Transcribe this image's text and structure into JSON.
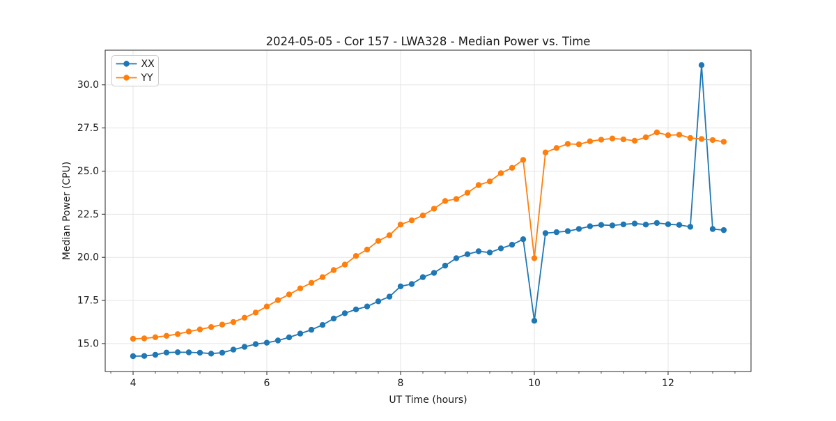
{
  "chart_data": {
    "type": "line",
    "title": "2024-05-05 - Cor 157 - LWA328 - Median Power vs. Time",
    "xlabel": "UT Time (hours)",
    "ylabel": "Median Power (CPU)",
    "xlim": [
      3.583,
      13.24
    ],
    "ylim": [
      13.38,
      32.01
    ],
    "xticks": [
      4,
      6,
      8,
      10,
      12
    ],
    "xtick_labels": [
      "4",
      "6",
      "8",
      "10",
      "12"
    ],
    "x_minor_tick_spacing": 0.333,
    "yticks": [
      15.0,
      17.5,
      20.0,
      22.5,
      25.0,
      27.5,
      30.0
    ],
    "ytick_labels": [
      "15.0",
      "17.5",
      "20.0",
      "22.5",
      "25.0",
      "27.5",
      "30.0"
    ],
    "grid": true,
    "legend_position": "upper left",
    "background_color": "#ffffff",
    "grid_color": "#e5e5e5",
    "x": [
      4.0,
      4.167,
      4.333,
      4.5,
      4.667,
      4.833,
      5.0,
      5.167,
      5.333,
      5.5,
      5.667,
      5.833,
      6.0,
      6.167,
      6.333,
      6.5,
      6.667,
      6.833,
      7.0,
      7.167,
      7.333,
      7.5,
      7.667,
      7.833,
      8.0,
      8.167,
      8.333,
      8.5,
      8.667,
      8.833,
      9.0,
      9.167,
      9.333,
      9.5,
      9.667,
      9.833,
      10.0,
      10.167,
      10.333,
      10.5,
      10.667,
      10.833,
      11.0,
      11.167,
      11.333,
      11.5,
      11.667,
      11.833,
      12.0,
      12.167,
      12.333,
      12.5,
      12.667,
      12.833
    ],
    "series": [
      {
        "name": "XX",
        "color": "#1f77b4",
        "values": [
          14.27,
          14.28,
          14.35,
          14.48,
          14.5,
          14.49,
          14.47,
          14.42,
          14.47,
          14.65,
          14.81,
          14.97,
          15.05,
          15.18,
          15.36,
          15.58,
          15.8,
          16.08,
          16.45,
          16.76,
          16.98,
          17.15,
          17.45,
          17.72,
          18.32,
          18.45,
          18.85,
          19.1,
          19.52,
          19.95,
          20.18,
          20.35,
          20.28,
          20.52,
          20.73,
          21.05,
          16.32,
          21.4,
          21.46,
          21.52,
          21.65,
          21.8,
          21.88,
          21.85,
          21.91,
          21.96,
          21.9,
          21.99,
          21.92,
          21.88,
          21.77,
          31.15,
          21.64,
          21.58
        ]
      },
      {
        "name": "YY",
        "color": "#ff7f0e",
        "values": [
          15.28,
          15.3,
          15.37,
          15.45,
          15.55,
          15.7,
          15.82,
          15.96,
          16.1,
          16.25,
          16.5,
          16.8,
          17.15,
          17.52,
          17.85,
          18.2,
          18.52,
          18.85,
          19.26,
          19.58,
          20.08,
          20.45,
          20.95,
          21.28,
          21.9,
          22.14,
          22.43,
          22.82,
          23.27,
          23.38,
          23.74,
          24.19,
          24.4,
          24.88,
          25.19,
          25.65,
          19.95,
          26.08,
          26.34,
          26.58,
          26.55,
          26.73,
          26.82,
          26.89,
          26.84,
          26.76,
          26.96,
          27.24,
          27.08,
          27.11,
          26.92,
          26.86,
          26.8,
          26.7
        ]
      }
    ]
  }
}
